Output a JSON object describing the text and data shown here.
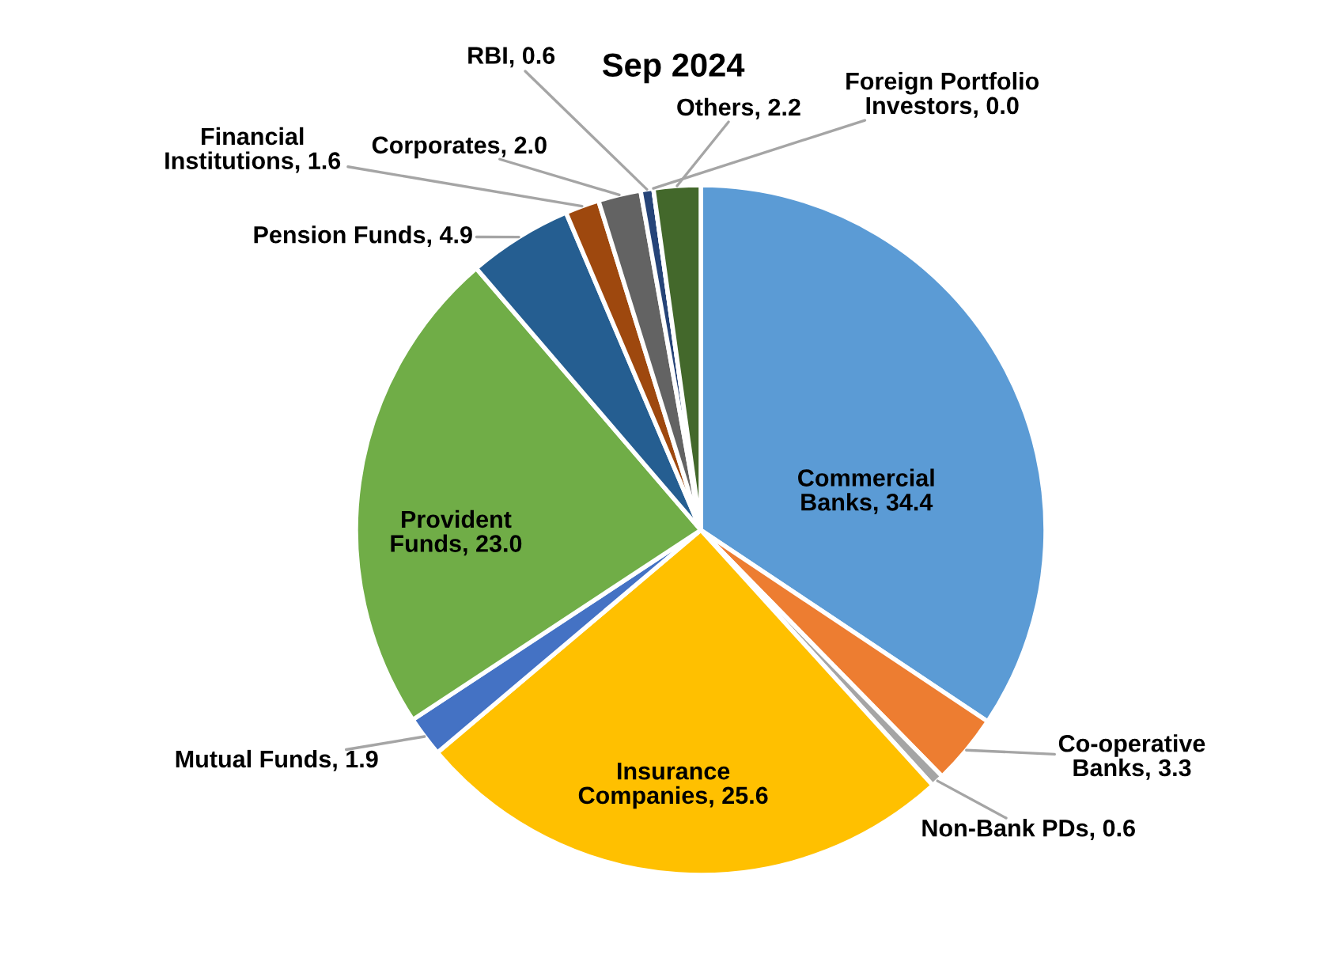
{
  "chart_data": {
    "type": "pie",
    "title": "Sep 2024",
    "categories": [
      "Commercial Banks",
      "Co-operative Banks",
      "Non-Bank PDs",
      "Insurance Companies",
      "Mutual Funds",
      "Provident Funds",
      "Pension Funds",
      "Financial Institutions",
      "Corporates",
      "RBI",
      "Foreign Portfolio Investors",
      "Others"
    ],
    "values": [
      34.4,
      3.3,
      0.6,
      25.6,
      1.9,
      23.0,
      4.9,
      1.6,
      2.0,
      0.6,
      0.0,
      2.2
    ],
    "value_labels": [
      ", 34.4",
      ", 3.3",
      ", 0.6",
      ", 25.6",
      ", 1.9",
      ", 23.0",
      ", 4.9",
      ", 1.6",
      ", 2.0",
      ", 0.6",
      ", 0.0",
      ", 2.2"
    ],
    "colors": [
      "#5b9bd5",
      "#ed7d31",
      "#a5a5a5",
      "#ffc000",
      "#4472c4",
      "#70ad47",
      "#255e91",
      "#9e480e",
      "#636363",
      "#264478",
      "#7cafdd",
      "#43682b"
    ],
    "legend": false
  }
}
